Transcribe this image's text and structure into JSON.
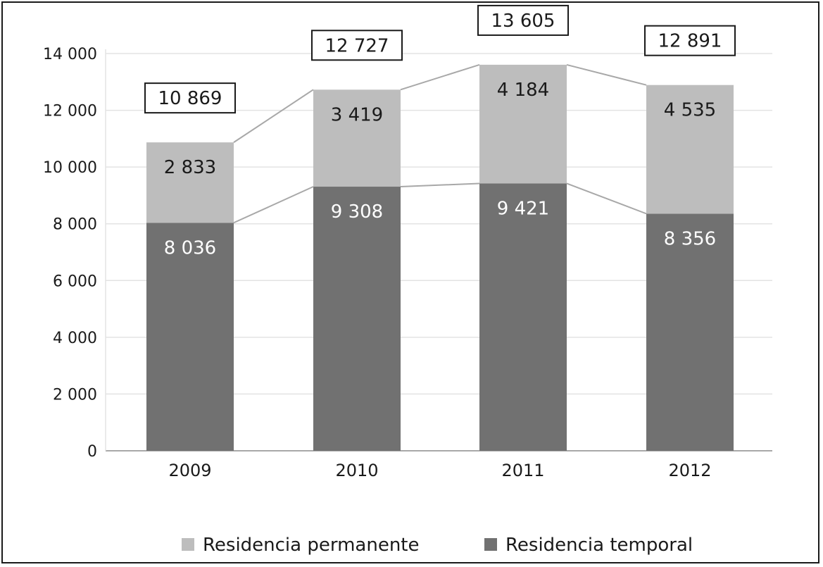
{
  "chart_data": {
    "type": "bar",
    "stacked": true,
    "categories": [
      "2009",
      "2010",
      "2011",
      "2012"
    ],
    "series": [
      {
        "name": "Residencia temporal",
        "values": [
          8036,
          9308,
          9421,
          8356
        ],
        "labels": [
          "8 036",
          "9 308",
          "9 421",
          "8 356"
        ],
        "color": "#717171",
        "label_color": "#ffffff"
      },
      {
        "name": "Residencia permanente",
        "values": [
          2833,
          3419,
          4184,
          4535
        ],
        "labels": [
          "2 833",
          "3 419",
          "4 184",
          "4 535"
        ],
        "color": "#bdbdbd",
        "label_color": "#1a1a1a"
      }
    ],
    "totals": [
      10869,
      12727,
      13605,
      12891
    ],
    "total_labels": [
      "10 869",
      "12 727",
      "13 605",
      "12 891"
    ],
    "ylim": [
      0,
      14000
    ],
    "yticks": [
      0,
      2000,
      4000,
      6000,
      8000,
      10000,
      12000,
      14000
    ],
    "ytick_labels": [
      "0",
      "2 000",
      "4 000",
      "6 000",
      "8 000",
      "10 000",
      "12 000",
      "14 000"
    ],
    "grid": true,
    "legend_position": "bottom",
    "legend_order": [
      "Residencia permanente",
      "Residencia temporal"
    ],
    "title": "",
    "xlabel": "",
    "ylabel": ""
  },
  "colors": {
    "frame": "#1a1a1a",
    "grid": "#e3e3e3",
    "axis": "#a8a8a8",
    "connector": "#a8a8a8"
  }
}
